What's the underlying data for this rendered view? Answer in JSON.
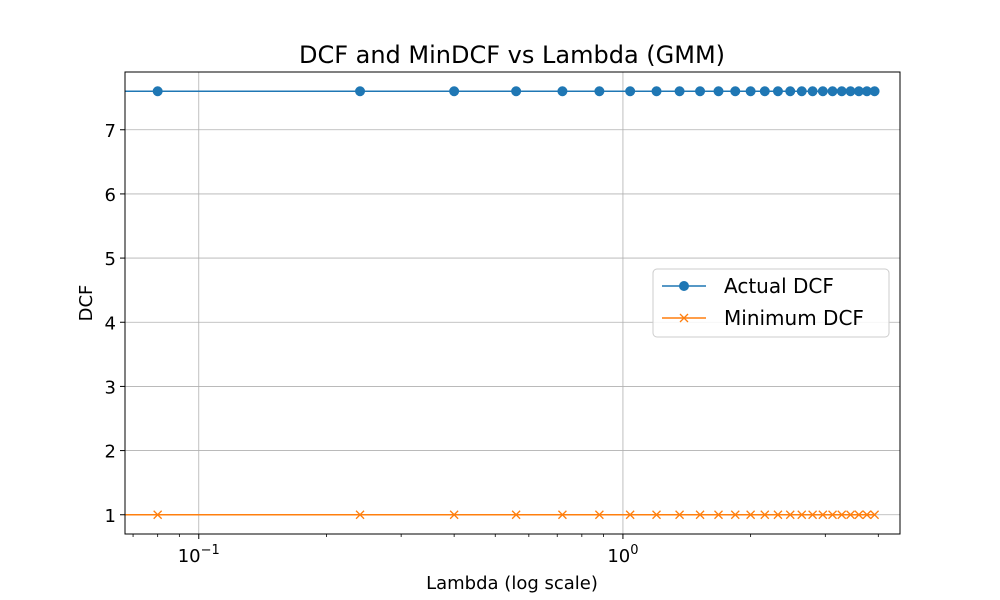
{
  "chart_data": {
    "type": "line",
    "title": "DCF and MinDCF vs Lambda (GMM)",
    "xlabel": "Lambda (log scale)",
    "ylabel": "DCF",
    "x_scale": "log",
    "xlim": [
      0.067,
      4.5
    ],
    "ylim": [
      0.7,
      7.9
    ],
    "x_ticks": [
      {
        "value": 0.1,
        "base": "10",
        "exp": "−1"
      },
      {
        "value": 1,
        "base": "10",
        "exp": "0"
      }
    ],
    "y_ticks": [
      1,
      2,
      3,
      4,
      5,
      6,
      7
    ],
    "grid": true,
    "legend_position": "center-right",
    "x": [
      0.08,
      0.24,
      0.4,
      0.56,
      0.72,
      0.88,
      1.04,
      1.2,
      1.36,
      1.52,
      1.68,
      1.84,
      2.0,
      2.16,
      2.32,
      2.48,
      2.64,
      2.8,
      2.96,
      3.12,
      3.28,
      3.44,
      3.6,
      3.76,
      3.92
    ],
    "series": [
      {
        "name": "Actual DCF",
        "color": "#1f77b4",
        "marker": "circle",
        "values": [
          7.6,
          7.6,
          7.6,
          7.6,
          7.6,
          7.6,
          7.6,
          7.6,
          7.6,
          7.6,
          7.6,
          7.6,
          7.6,
          7.6,
          7.6,
          7.6,
          7.6,
          7.6,
          7.6,
          7.6,
          7.6,
          7.6,
          7.6,
          7.6,
          7.6
        ]
      },
      {
        "name": "Minimum DCF",
        "color": "#ff7f0e",
        "marker": "x",
        "values": [
          1.0,
          1.0,
          1.0,
          1.0,
          1.0,
          1.0,
          1.0,
          1.0,
          1.0,
          1.0,
          1.0,
          1.0,
          1.0,
          1.0,
          1.0,
          1.0,
          1.0,
          1.0,
          1.0,
          1.0,
          1.0,
          1.0,
          1.0,
          1.0,
          1.0
        ]
      }
    ]
  }
}
